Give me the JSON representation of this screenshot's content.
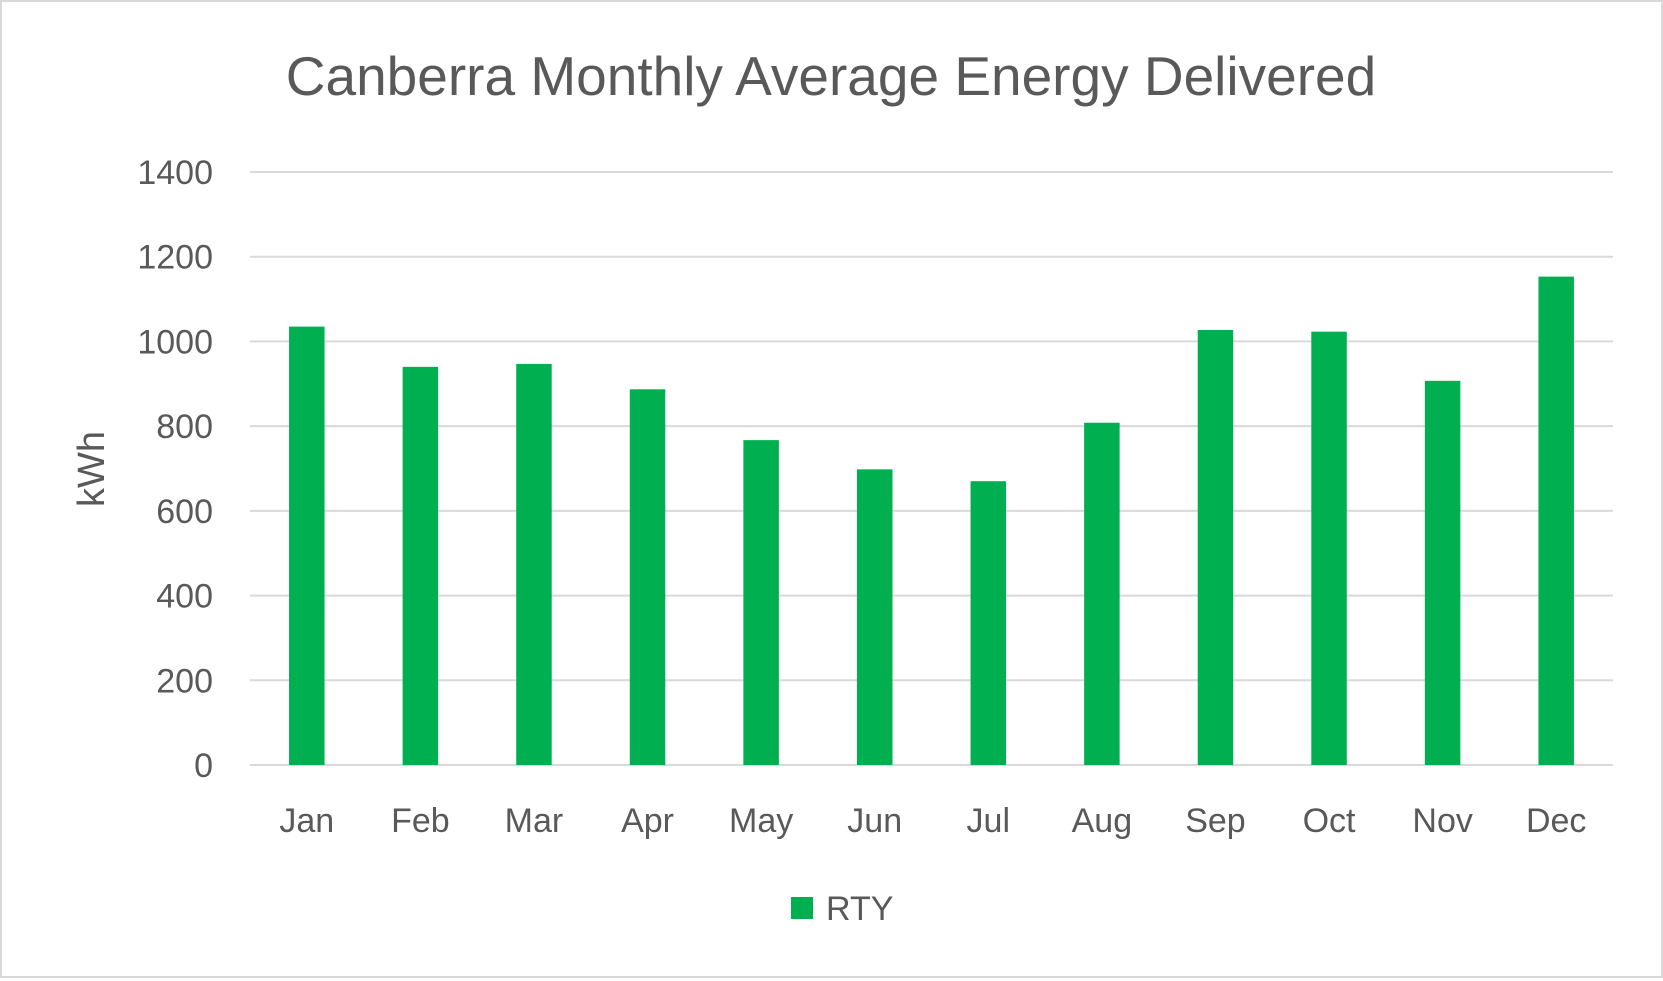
{
  "chart_data": {
    "type": "bar",
    "title": "Canberra Monthly Average Energy Delivered",
    "xlabel": "",
    "ylabel": "kWh",
    "categories": [
      "Jan",
      "Feb",
      "Mar",
      "Apr",
      "May",
      "Jun",
      "Jul",
      "Aug",
      "Sep",
      "Oct",
      "Nov",
      "Dec"
    ],
    "series": [
      {
        "name": "RTY",
        "color": "#00b050",
        "values": [
          1035,
          940,
          947,
          887,
          767,
          698,
          670,
          808,
          1027,
          1023,
          907,
          1153
        ]
      }
    ],
    "ylim": [
      0,
      1400
    ],
    "yticks": [
      0,
      200,
      400,
      600,
      800,
      1000,
      1200,
      1400
    ],
    "grid": true,
    "legend": "bottom-center"
  }
}
